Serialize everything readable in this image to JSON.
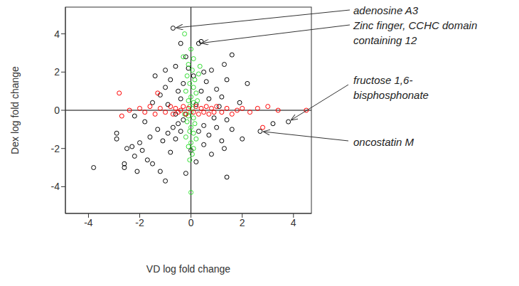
{
  "chart_data": {
    "type": "scatter",
    "x_label": "VD log fold change",
    "y_label": "Dex log fold change",
    "xlim": [
      -4.9,
      4.7
    ],
    "ylim": [
      -5.4,
      5.4
    ],
    "xticks": [
      -4,
      -2,
      0,
      2,
      4
    ],
    "yticks": [
      -4,
      -2,
      0,
      2,
      4
    ],
    "grid": false,
    "hlines": [
      0
    ],
    "vlines": [
      0
    ],
    "series": [
      {
        "color": "#000000",
        "marker": "circle_open",
        "x": [
          -3.8,
          -2.6,
          -2.6,
          -2.1,
          -2.2,
          -2.9,
          -2.9,
          -2.5,
          -2.3,
          -2.0,
          -1.9,
          -1.7,
          -1.5,
          -1.2,
          -1.0,
          -0.8,
          -1.6,
          -1.3,
          -1.1,
          -0.9,
          -0.7,
          -0.6,
          -0.5,
          -0.4,
          -0.3,
          -1.8,
          -2.2,
          -1.5,
          -1.2,
          -1.0,
          -1.0,
          -0.8,
          -0.6,
          -0.5,
          -0.4,
          -0.3,
          -0.7,
          -0.4,
          -0.2,
          -1.4,
          -0.9,
          -0.6,
          0.3,
          0.4,
          0.5,
          0.6,
          0.8,
          0.4,
          0.7,
          1.0,
          1.2,
          1.4,
          1.6,
          1.3,
          0.9,
          0.5,
          0.7,
          1.0,
          1.2,
          1.4,
          1.6,
          1.3,
          1.4,
          0.8,
          0.5,
          0.3,
          2.0,
          1.9,
          2.2,
          2.7,
          3.8,
          3.2,
          0.2,
          -0.2,
          0.0,
          -0.1,
          0.1,
          0.2,
          -0.2,
          1.1
        ],
        "values": [
          -3.0,
          -2.8,
          -3.0,
          -3.2,
          -2.4,
          -1.2,
          -1.5,
          -2.0,
          -1.9,
          -1.7,
          -2.1,
          -2.6,
          -2.8,
          -3.2,
          -3.7,
          -2.2,
          -1.4,
          -1.0,
          -1.6,
          -1.2,
          -0.9,
          -1.5,
          -0.7,
          -1.1,
          -0.5,
          -0.6,
          -0.3,
          0.4,
          0.8,
          1.2,
          2.1,
          1.6,
          2.3,
          1.0,
          0.6,
          1.4,
          4.3,
          3.5,
          2.8,
          1.8,
          0.3,
          -0.2,
          3.5,
          3.6,
          2.0,
          1.5,
          2.1,
          1.0,
          0.6,
          1.1,
          0.7,
          1.6,
          2.9,
          2.4,
          -0.4,
          -0.8,
          -1.3,
          -0.9,
          -1.6,
          -0.5,
          -1.0,
          -2.0,
          -3.5,
          -2.3,
          -1.8,
          -1.1,
          -1.5,
          0.4,
          1.4,
          -1.1,
          -0.6,
          -0.7,
          -2.7,
          -3.3,
          -2.1,
          2.2,
          1.8,
          0.3,
          -0.2,
          0.2
        ]
      },
      {
        "color": "#33dd33",
        "marker": "circle_open",
        "x": [
          -0.25,
          0.0,
          0.1,
          -0.1,
          0.05,
          -0.15,
          0.15,
          -0.05,
          0.1,
          -0.2,
          0.2,
          0.0,
          -0.1,
          0.1,
          -0.05,
          0.05,
          0.0,
          -0.1,
          0.1,
          -0.15,
          0.15,
          0.0,
          -0.05,
          0.1,
          -0.2,
          0.2,
          0.0,
          -0.1,
          0.1,
          0.05,
          -0.05,
          0.0,
          0.25,
          -0.25,
          0.3,
          -0.3,
          0.35
        ],
        "values": [
          4.0,
          3.2,
          2.7,
          2.4,
          2.1,
          1.8,
          1.6,
          1.4,
          1.2,
          1.0,
          0.9,
          0.7,
          0.5,
          0.4,
          0.2,
          0.1,
          -0.1,
          -0.3,
          -0.4,
          -0.6,
          -0.7,
          -0.9,
          -1.1,
          -1.2,
          -1.4,
          -1.5,
          -1.7,
          -1.9,
          -2.0,
          -2.3,
          -2.6,
          -4.3,
          0.5,
          -0.2,
          1.9,
          2.8,
          2.3
        ]
      },
      {
        "color": "#ff0000",
        "marker": "circle_open",
        "x": [
          -2.8,
          -2.7,
          -2.4,
          -2.0,
          -1.8,
          -1.6,
          -1.4,
          -1.2,
          -1.0,
          -0.8,
          -0.7,
          -0.6,
          -0.5,
          -0.4,
          -0.3,
          -0.2,
          -0.1,
          0.1,
          0.2,
          0.3,
          0.4,
          0.5,
          0.6,
          0.7,
          0.8,
          0.9,
          1.0,
          1.2,
          1.4,
          1.6,
          1.8,
          2.0,
          2.3,
          2.6,
          2.8,
          3.0,
          3.4,
          4.5,
          -1.3
        ],
        "values": [
          0.9,
          -0.3,
          0.0,
          0.1,
          -0.1,
          0.2,
          -0.2,
          0.1,
          -0.1,
          0.2,
          -0.2,
          0.1,
          -0.1,
          0.0,
          0.2,
          -0.2,
          0.1,
          -0.1,
          0.2,
          -0.2,
          0.1,
          -0.1,
          0.2,
          -0.2,
          0.1,
          -0.1,
          0.2,
          -0.1,
          0.1,
          -0.2,
          0.0,
          0.1,
          -0.1,
          0.1,
          -0.9,
          0.2,
          0.0,
          0.0,
          0.9
        ]
      }
    ],
    "annotations": [
      {
        "text": [
          "adenosine A3"
        ],
        "x": -0.7,
        "y": 4.3
      },
      {
        "text": [
          "Zinc finger, CCHC domain",
          "containing 12"
        ],
        "x": 0.3,
        "y": 3.5
      },
      {
        "text": [
          "fructose 1,6-",
          "bisphosphonate"
        ],
        "x": 3.8,
        "y": -0.6
      },
      {
        "text": [
          "oncostatin M"
        ],
        "x": 2.7,
        "y": -1.1
      }
    ]
  }
}
